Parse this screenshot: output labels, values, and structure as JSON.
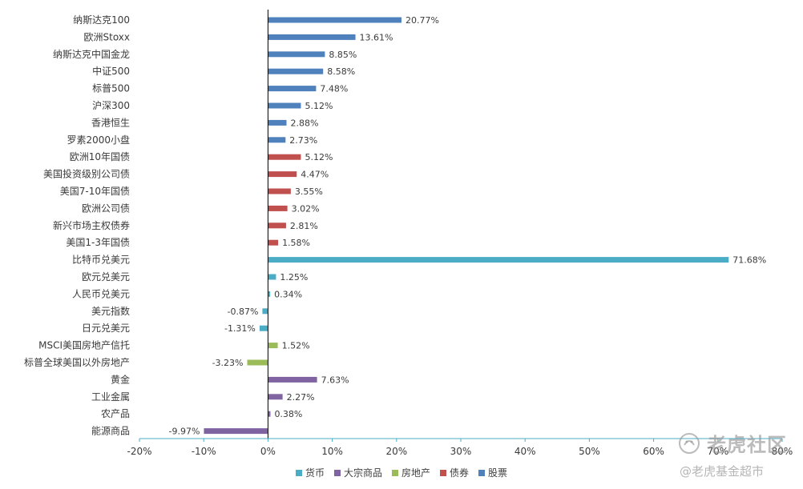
{
  "chart_data": {
    "type": "bar",
    "orientation": "horizontal",
    "categories": [
      "纳斯达克100",
      "欧洲Stoxx",
      "纳斯达克中国金龙",
      "中证500",
      "标普500",
      "沪深300",
      "香港恒生",
      "罗素2000小盘",
      "欧洲10年国债",
      "美国投资级别公司债",
      "美国7-10年国债",
      "欧洲公司债",
      "新兴市场主权债券",
      "美国1-3年国债",
      "比特币兑美元",
      "欧元兑美元",
      "人民币兑美元",
      "美元指数",
      "日元兑美元",
      "MSCI美国房地产信托",
      "标普全球美国以外房地产",
      "黄金",
      "工业金属",
      "农产品",
      "能源商品"
    ],
    "values": [
      20.77,
      13.61,
      8.85,
      8.58,
      7.48,
      5.12,
      2.88,
      2.73,
      5.12,
      4.47,
      3.55,
      3.02,
      2.81,
      1.58,
      71.68,
      1.25,
      0.34,
      -0.87,
      -1.31,
      1.52,
      -3.23,
      7.63,
      2.27,
      0.38,
      -9.97
    ],
    "value_labels": [
      "20.77%",
      "13.61%",
      "8.85%",
      "8.58%",
      "7.48%",
      "5.12%",
      "2.88%",
      "2.73%",
      "5.12%",
      "4.47%",
      "3.55%",
      "3.02%",
      "2.81%",
      "1.58%",
      "71.68%",
      "1.25%",
      "0.34%",
      "-0.87%",
      "-1.31%",
      "1.52%",
      "-3.23%",
      "7.63%",
      "2.27%",
      "0.38%",
      "-9.97%"
    ],
    "groups": [
      "股票",
      "股票",
      "股票",
      "股票",
      "股票",
      "股票",
      "股票",
      "股票",
      "债券",
      "债券",
      "债券",
      "债券",
      "债券",
      "债券",
      "货币",
      "货币",
      "货币",
      "货币",
      "货币",
      "房地产",
      "房地产",
      "大宗商品",
      "大宗商品",
      "大宗商品",
      "大宗商品"
    ],
    "series": [
      {
        "name": "货币",
        "color": "#4bacc6"
      },
      {
        "name": "大宗商品",
        "color": "#8064a2"
      },
      {
        "name": "房地产",
        "color": "#9bbb59"
      },
      {
        "name": "债券",
        "color": "#c0504d"
      },
      {
        "name": "股票",
        "color": "#4f81bd"
      }
    ],
    "xlim": [
      -20,
      80
    ],
    "xticks": [
      -20,
      -10,
      0,
      10,
      20,
      30,
      40,
      50,
      60,
      70,
      80
    ],
    "xtick_labels": [
      "-20%",
      "-10%",
      "0%",
      "10%",
      "20%",
      "30%",
      "40%",
      "50%",
      "60%",
      "70%",
      "80%"
    ],
    "xlabel": "",
    "ylabel": "",
    "title": "",
    "grid": false,
    "legend_position": "bottom"
  },
  "watermark": {
    "line1": "老虎社区",
    "line2": "@老虎基金超市"
  }
}
